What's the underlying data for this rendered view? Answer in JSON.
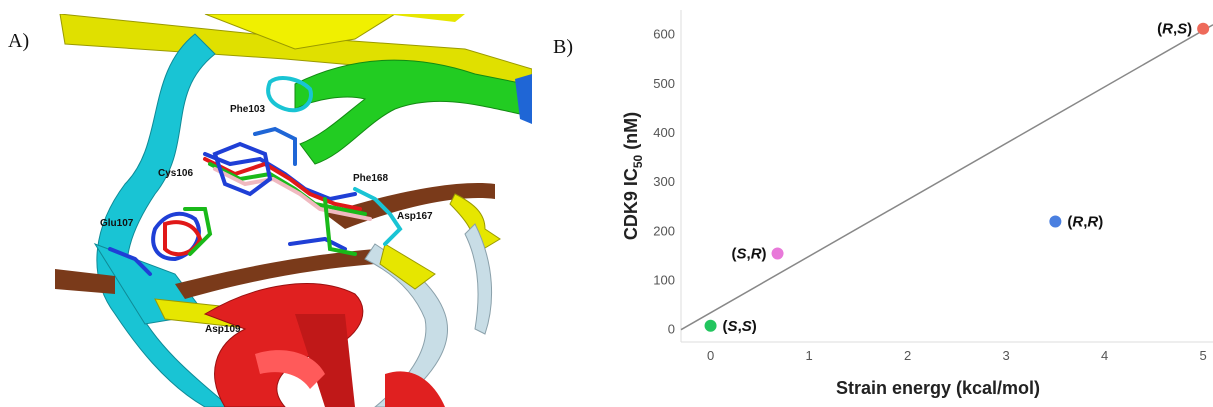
{
  "panel_a": {
    "letter": "A)",
    "residue_labels": [
      {
        "name": "phe103",
        "text": "Phe103"
      },
      {
        "name": "cys106",
        "text": "Cys106"
      },
      {
        "name": "phe168",
        "text": "Phe168"
      },
      {
        "name": "asp167",
        "text": "Asp167"
      },
      {
        "name": "glu107",
        "text": "Glu107"
      },
      {
        "name": "asp109",
        "text": "Asp109"
      }
    ],
    "colors": {
      "helix_green": "#22cc22",
      "strand_yellow": "#e6e600",
      "loop_cyan": "#19c4d4",
      "helix_red": "#e02020",
      "strand_brown": "#7a3a1a",
      "loop_grey": "#c8dde6",
      "ligand_blue": "#1f3fd6",
      "ligand_red": "#e01818",
      "ligand_pink": "#f0b9c0",
      "ligand_green": "#19b919"
    }
  },
  "panel_b": {
    "letter": "B)"
  },
  "chart_data": {
    "type": "scatter",
    "xlabel": "Strain energy (kcal/mol)",
    "ylabel_main": "CDK9 IC",
    "ylabel_sub": "50",
    "ylabel_unit": " (nM)",
    "xlim": [
      -0.3,
      5.1
    ],
    "ylim": [
      -25,
      650
    ],
    "xticks": [
      0,
      1,
      2,
      3,
      4,
      5
    ],
    "yticks": [
      0,
      100,
      200,
      300,
      400,
      500,
      600
    ],
    "grid": false,
    "points": [
      {
        "id": "ss",
        "x": 0.0,
        "y": 8,
        "label_open": "(",
        "label_a": "S",
        "label_sep": ",",
        "label_b": "S",
        "label_close": ")",
        "color": "#22c55e"
      },
      {
        "id": "sr",
        "x": 0.68,
        "y": 155,
        "label_open": "(",
        "label_a": "S",
        "label_sep": ",",
        "label_b": "R",
        "label_close": ")",
        "color": "#e879d9"
      },
      {
        "id": "rr",
        "x": 3.5,
        "y": 220,
        "label_open": "(",
        "label_a": "R",
        "label_sep": ",",
        "label_b": "R",
        "label_close": ")",
        "color": "#4a7fe0"
      },
      {
        "id": "rs",
        "x": 5.0,
        "y": 612,
        "label_open": "(",
        "label_a": "R",
        "label_sep": ",",
        "label_b": "S",
        "label_close": ")",
        "color": "#ee6a5a"
      }
    ],
    "trendline": {
      "x": [
        -0.3,
        5.1
      ],
      "y": [
        0,
        620
      ],
      "color": "#888888"
    }
  }
}
